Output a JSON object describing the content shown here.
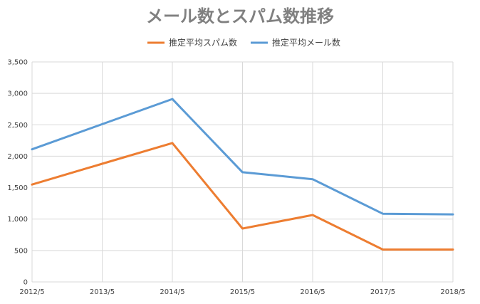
{
  "chart_data": {
    "type": "line",
    "title": "メール数とスパム数推移",
    "categories": [
      "2012/5",
      "2013/5",
      "2014/5",
      "2015/5",
      "2016/5",
      "2017/5",
      "2018/5"
    ],
    "series": [
      {
        "name": "推定平均スパム数",
        "color": "#ED7D31",
        "values": [
          1550,
          1880,
          2210,
          850,
          1065,
          515,
          515
        ]
      },
      {
        "name": "推定平均メール数",
        "color": "#5B9BD5",
        "values": [
          2110,
          2510,
          2910,
          1745,
          1635,
          1085,
          1075
        ]
      }
    ],
    "ylim": [
      0,
      3500
    ],
    "yticks": [
      0,
      500,
      1000,
      1500,
      2000,
      2500,
      3000,
      3500
    ],
    "ytick_labels": [
      "0",
      "500",
      "1,000",
      "1,500",
      "2,000",
      "2,500",
      "3,000",
      "3,500"
    ],
    "grid": true,
    "legend_position": "top"
  }
}
